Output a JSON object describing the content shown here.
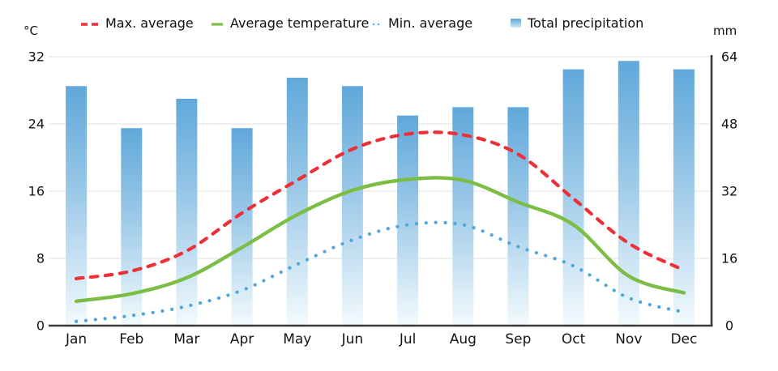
{
  "axes_units": {
    "left": "°C",
    "right": "mm"
  },
  "legend": {
    "items": [
      {
        "label": "Max. average"
      },
      {
        "label": "Average temperature"
      },
      {
        "label": "Min. average"
      },
      {
        "label": "Total precipitation"
      }
    ]
  },
  "colors": {
    "max_line": "#ed2f38",
    "avg_line": "#7cbe45",
    "min_line": "#4fa6d8",
    "bar_top": "#60a8da",
    "bar_mid": "#9cc9e8",
    "bar_bottom": "#f3fafd",
    "grid": "#ebebeb",
    "axis": "#3b3b3b",
    "text": "#141414"
  },
  "chart_data": {
    "type": "composite",
    "subtypes": [
      "bar",
      "line",
      "line",
      "line"
    ],
    "categories": [
      "Jan",
      "Feb",
      "Mar",
      "Apr",
      "May",
      "Jun",
      "Jul",
      "Aug",
      "Sep",
      "Oct",
      "Nov",
      "Dec"
    ],
    "series": [
      {
        "name": "Max. average",
        "type": "line",
        "style": "dashed",
        "axis": "left",
        "unit": "°C",
        "color": "#ed2f38",
        "values": [
          5.6,
          6.5,
          8.9,
          13.4,
          17.3,
          21.0,
          22.8,
          22.7,
          20.4,
          15.1,
          9.8,
          6.6
        ]
      },
      {
        "name": "Average temperature",
        "type": "line",
        "style": "solid",
        "axis": "left",
        "unit": "°C",
        "color": "#7cbe45",
        "values": [
          2.9,
          3.8,
          5.7,
          9.3,
          13.2,
          16.1,
          17.4,
          17.3,
          14.7,
          12.0,
          5.9,
          3.9
        ]
      },
      {
        "name": "Min. average",
        "type": "line",
        "style": "dotted",
        "axis": "left",
        "unit": "°C",
        "color": "#4fa6d8",
        "values": [
          0.5,
          1.2,
          2.3,
          4.2,
          7.3,
          10.2,
          12.0,
          12.0,
          9.4,
          7.1,
          3.3,
          1.6
        ]
      },
      {
        "name": "Total precipitation",
        "type": "bar",
        "axis": "right",
        "unit": "mm",
        "color": "#60a8da",
        "values": [
          57,
          47,
          54,
          47,
          59,
          57,
          50,
          52,
          52,
          61,
          63,
          61
        ]
      }
    ],
    "left_axis": {
      "unit": "°C",
      "ticks": [
        0,
        8,
        16,
        24,
        32
      ],
      "range": [
        0,
        32
      ]
    },
    "right_axis": {
      "unit": "mm",
      "ticks": [
        0,
        16,
        32,
        48,
        64
      ],
      "range": [
        0,
        64
      ]
    },
    "grid": true,
    "legend_position": "top"
  }
}
